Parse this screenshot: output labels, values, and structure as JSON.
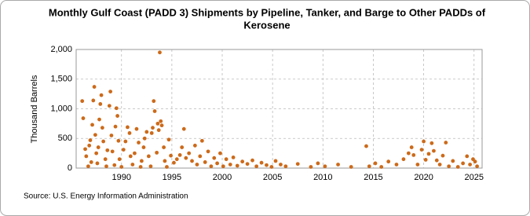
{
  "chart_data": {
    "type": "scatter",
    "title": "Monthly Gulf Coast (PADD 3) Shipments by Pipeline, Tanker, and Barge to Other PADDs of Kerosene",
    "title_lines": [
      "Monthly Gulf Coast (PADD 3) Shipments by Pipeline, Tanker, and Barge to Other PADDs of",
      "Kerosene"
    ],
    "y_label": "Thousand Barrels",
    "source": "Source: U.S. Energy Information Administration",
    "color": "#cc6a1a",
    "grid": true,
    "xlim": [
      1985.5,
      2025.8
    ],
    "ylim": [
      0,
      2000
    ],
    "xticks": [
      1990,
      1995,
      2000,
      2005,
      2010,
      2015,
      2020,
      2025
    ],
    "yticks": [
      0,
      500,
      {
        "value": 1000,
        "label": "1,000"
      },
      {
        "value": 1500,
        "label": "1,500"
      },
      {
        "value": 2000,
        "label": "2,000"
      }
    ],
    "x": [
      1986.1,
      1986.2,
      1986.4,
      1986.5,
      1986.7,
      1986.8,
      1986.9,
      1987.0,
      1987.1,
      1987.2,
      1987.3,
      1987.4,
      1987.5,
      1987.6,
      1987.7,
      1987.8,
      1987.9,
      1988.0,
      1988.1,
      1988.2,
      1988.4,
      1988.5,
      1988.6,
      1988.8,
      1988.9,
      1989.0,
      1989.1,
      1989.3,
      1989.4,
      1989.5,
      1989.6,
      1989.7,
      1989.8,
      1990.0,
      1990.2,
      1990.4,
      1990.6,
      1990.8,
      1990.9,
      1991.1,
      1991.3,
      1991.5,
      1991.7,
      1991.9,
      1992.0,
      1992.2,
      1992.3,
      1992.5,
      1992.7,
      1992.9,
      1993.0,
      1993.1,
      1993.2,
      1993.3,
      1993.5,
      1993.6,
      1993.7,
      1993.8,
      1993.9,
      1994.0,
      1994.2,
      1994.3,
      1994.5,
      1994.7,
      1994.9,
      1995.2,
      1995.5,
      1995.8,
      1996.0,
      1996.2,
      1996.4,
      1996.7,
      1997.0,
      1997.3,
      1997.5,
      1997.8,
      1998.0,
      1998.3,
      1998.6,
      1998.9,
      1999.2,
      1999.5,
      1999.8,
      2000.1,
      2000.4,
      2000.8,
      2001.1,
      2001.5,
      2002.0,
      2002.5,
      2003.0,
      2003.4,
      2003.9,
      2004.4,
      2004.9,
      2005.3,
      2005.8,
      2006.3,
      2007.5,
      2008.8,
      2009.5,
      2010.2,
      2011.5,
      2012.8,
      2014.3,
      2014.6,
      2015.2,
      2015.8,
      2016.5,
      2017.3,
      2018.0,
      2018.5,
      2018.8,
      2019.0,
      2019.4,
      2019.8,
      2020.0,
      2020.2,
      2020.5,
      2020.8,
      2021.0,
      2021.3,
      2021.6,
      2021.9,
      2022.2,
      2022.5,
      2022.9,
      2023.4,
      2023.9,
      2024.3,
      2024.6,
      2024.9,
      2025.1,
      2025.3
    ],
    "values": [
      1130,
      840,
      320,
      200,
      30,
      380,
      470,
      100,
      730,
      1140,
      1370,
      560,
      250,
      80,
      350,
      820,
      1080,
      1230,
      680,
      450,
      150,
      30,
      300,
      1050,
      1290,
      550,
      280,
      50,
      700,
      1010,
      880,
      460,
      150,
      20,
      310,
      450,
      690,
      590,
      200,
      60,
      250,
      660,
      430,
      20,
      120,
      350,
      500,
      610,
      200,
      30,
      590,
      680,
      1130,
      960,
      260,
      750,
      640,
      1950,
      790,
      720,
      350,
      120,
      20,
      480,
      210,
      90,
      150,
      220,
      350,
      660,
      170,
      250,
      120,
      380,
      60,
      200,
      460,
      100,
      280,
      30,
      170,
      80,
      250,
      30,
      150,
      60,
      180,
      40,
      110,
      70,
      130,
      30,
      90,
      50,
      20,
      120,
      60,
      30,
      70,
      20,
      80,
      30,
      60,
      20,
      370,
      30,
      80,
      20,
      110,
      60,
      150,
      250,
      350,
      220,
      60,
      310,
      450,
      140,
      240,
      420,
      290,
      130,
      60,
      210,
      430,
      30,
      120,
      20,
      80,
      200,
      60,
      150,
      110,
      30
    ]
  }
}
